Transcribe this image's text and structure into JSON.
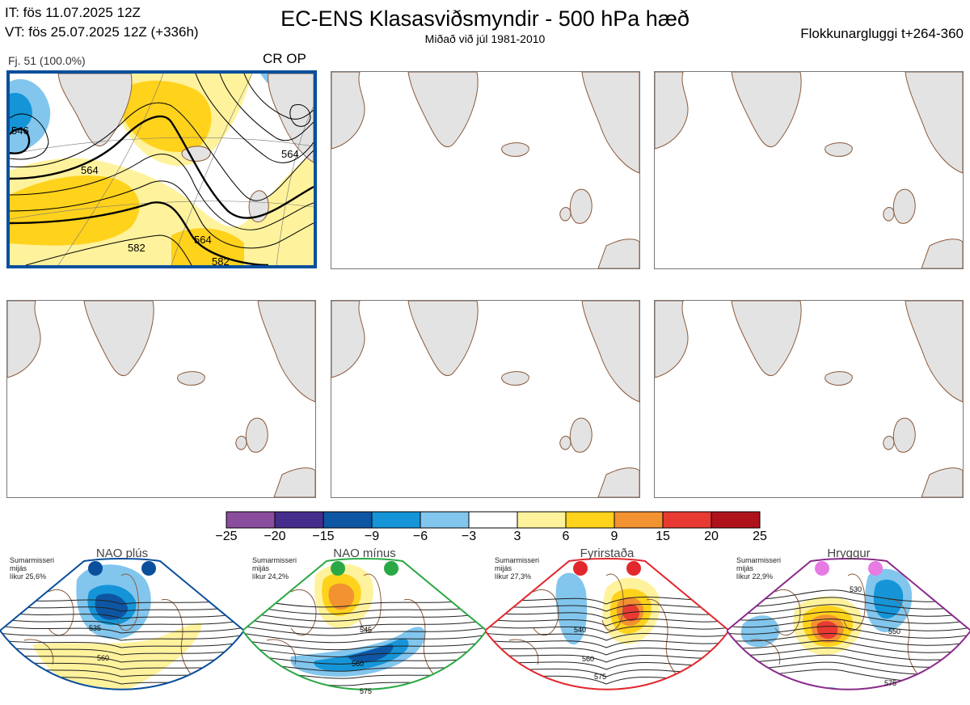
{
  "header": {
    "it": "IT: fös 11.07.2025 12Z",
    "vt": "VT: fös 25.07.2025 12Z  (+336h)",
    "title": "EC-ENS Klasasviðsmyndir - 500 hPa hæð",
    "subtitle": "Miðað við júl 1981-2010",
    "window": "Flokkunargluggi t+264-360"
  },
  "panel1": {
    "member": "Fj. 51 (100.0%)",
    "tag": "CR OP",
    "contour_labels": [
      "546",
      "564",
      "564",
      "564",
      "582",
      "582"
    ]
  },
  "colors": {
    "highlight_border": "#0a4f9c",
    "land": "#e3e3e3",
    "coast": "#8b5a3c"
  },
  "chart_data": {
    "type": "heatmap",
    "colorbar": {
      "ticks": [
        "−25",
        "−20",
        "−15",
        "−9",
        "−6",
        "−3",
        "3",
        "6",
        "9",
        "15",
        "20",
        "25"
      ],
      "colors": [
        "#8a4c9c",
        "#452d8e",
        "#0d56a3",
        "#1595d8",
        "#82c6ee",
        "#ffffff",
        "#fff29c",
        "#ffd21c",
        "#f29231",
        "#e83a32",
        "#b0121c"
      ]
    }
  },
  "regimes": [
    {
      "name": "NAO plús",
      "note": "Sumarmisseri\nmijás\nlíkur 25,6%",
      "color": "#0a4f9c",
      "dot": "#0a4f9c",
      "labels": [
        "535",
        "560"
      ]
    },
    {
      "name": "NAO mínus",
      "note": "Sumarmisseri\nmijás\nlíkur 24,2%",
      "color": "#2aa845",
      "dot": "#2aa845",
      "labels": [
        "545",
        "560",
        "575"
      ]
    },
    {
      "name": "Fyrirstaða",
      "note": "Sumarmisseri\nmijás\nlíkur 27,3%",
      "color": "#e2282d",
      "dot": "#e2282d",
      "labels": [
        "540",
        "560",
        "575"
      ]
    },
    {
      "name": "Hryggur",
      "note": "Sumarmisseri\nmijás\nlíkur 22,9%",
      "color": "#8a2b8a",
      "dot": "#e87ae4",
      "labels": [
        "530",
        "550",
        "575"
      ]
    }
  ]
}
